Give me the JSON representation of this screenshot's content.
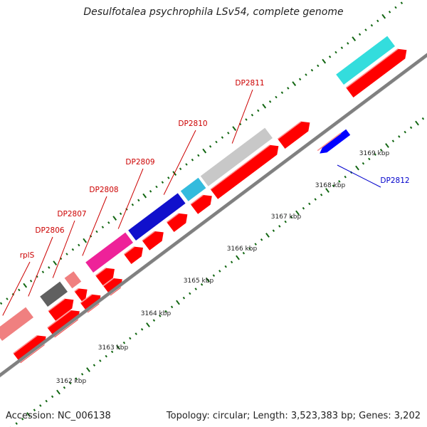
{
  "title": "Desulfotalea psychrophila LSv54, complete genome",
  "accession": "Accession: NC_006138",
  "summary": "Topology: circular; Length: 3,523,383 bp; Genes: 3,202",
  "colors": {
    "forward_cds": "#ff0000",
    "reverse_cds": "#0000ff",
    "backbone": "#808080",
    "tick": "#116611",
    "label_forward": "#cc0000",
    "label_reverse": "#0000cc"
  },
  "ticks": [
    {
      "label": "3162 kbp"
    },
    {
      "label": "3163 kbp"
    },
    {
      "label": "3164 kbp"
    },
    {
      "label": "3165 kbp"
    },
    {
      "label": "3166 kbp"
    },
    {
      "label": "3167 kbp"
    },
    {
      "label": "3168 kbp"
    },
    {
      "label": "3169 kbp"
    }
  ],
  "gene_labels": [
    {
      "label": "rplS",
      "strand": "forward"
    },
    {
      "label": "DP2806",
      "strand": "forward"
    },
    {
      "label": "DP2807",
      "strand": "forward"
    },
    {
      "label": "DP2808",
      "strand": "forward"
    },
    {
      "label": "DP2809",
      "strand": "forward"
    },
    {
      "label": "DP2810",
      "strand": "forward"
    },
    {
      "label": "DP2811",
      "strand": "forward"
    },
    {
      "label": "DP2812",
      "strand": "reverse"
    }
  ],
  "cog_track": [
    {
      "color": "#f08080"
    },
    {
      "color": "#606060"
    },
    {
      "color": "#f08080"
    },
    {
      "color": "#ee2299"
    },
    {
      "color": "#1010cc"
    },
    {
      "color": "#33bbdd"
    },
    {
      "color": "#c8c8c8"
    },
    {
      "color": "#33dddd"
    }
  ]
}
